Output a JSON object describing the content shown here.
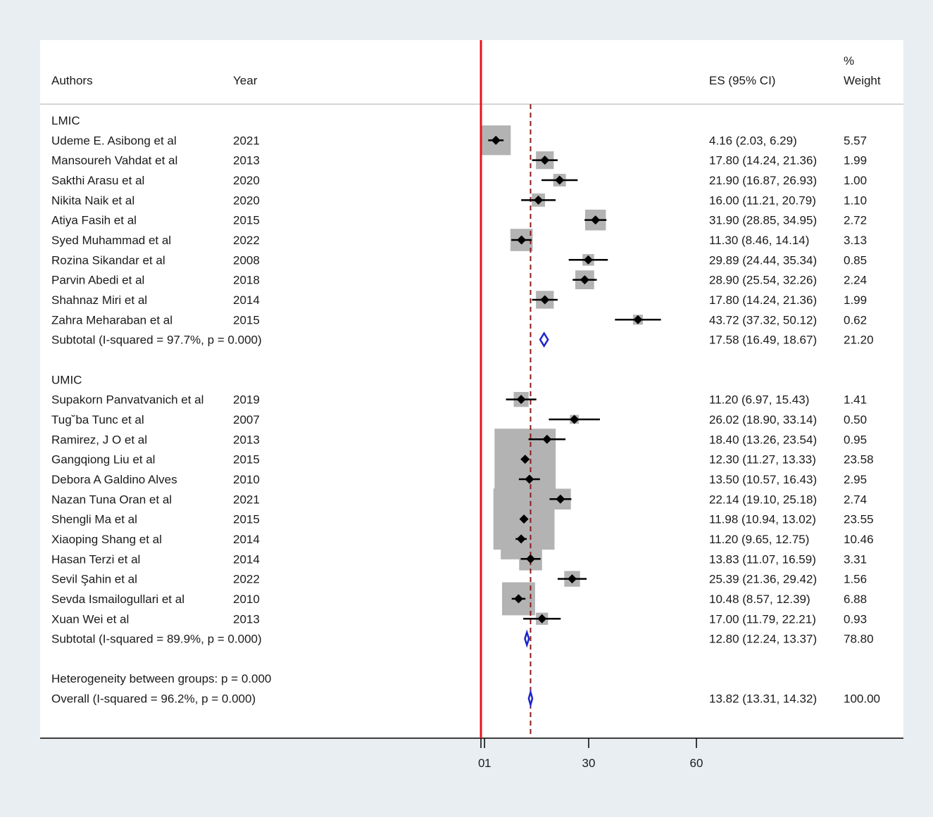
{
  "header": {
    "authors": "Authors",
    "year": "Year",
    "es": "ES (95% CI)",
    "weight_line1": "%",
    "weight_line2": "Weight"
  },
  "chart_data": {
    "type": "forest",
    "xaxis": {
      "ticks": [
        0,
        1,
        30,
        60
      ],
      "tick_labels": [
        "0",
        "1",
        "30",
        "60"
      ],
      "range": [
        0,
        60
      ]
    },
    "null_line": 0,
    "overall_line": 13.82,
    "groups": [
      {
        "label": "LMIC",
        "studies": [
          {
            "author": "Udeme E. Asibong et al",
            "year": "2021",
            "es": 4.16,
            "lo": 2.03,
            "hi": 6.29,
            "ci_text": "4.16 (2.03, 6.29)",
            "weight": 5.57,
            "weight_text": "5.57"
          },
          {
            "author": "Mansoureh Vahdat et al",
            "year": "2013",
            "es": 17.8,
            "lo": 14.24,
            "hi": 21.36,
            "ci_text": "17.80 (14.24, 21.36)",
            "weight": 1.99,
            "weight_text": "1.99"
          },
          {
            "author": "Sakthi Arasu et al",
            "year": "2020",
            "es": 21.9,
            "lo": 16.87,
            "hi": 26.93,
            "ci_text": "21.90 (16.87, 26.93)",
            "weight": 1.0,
            "weight_text": "1.00"
          },
          {
            "author": "Nikita Naik et al",
            "year": "2020",
            "es": 16.0,
            "lo": 11.21,
            "hi": 20.79,
            "ci_text": "16.00 (11.21, 20.79)",
            "weight": 1.1,
            "weight_text": "1.10"
          },
          {
            "author": "Atiya Fasih et al",
            "year": "2015",
            "es": 31.9,
            "lo": 28.85,
            "hi": 34.95,
            "ci_text": "31.90 (28.85, 34.95)",
            "weight": 2.72,
            "weight_text": "2.72"
          },
          {
            "author": "Syed Muhammad et al",
            "year": "2022",
            "es": 11.3,
            "lo": 8.46,
            "hi": 14.14,
            "ci_text": "11.30 (8.46, 14.14)",
            "weight": 3.13,
            "weight_text": "3.13"
          },
          {
            "author": "Rozina Sikandar et al",
            "year": "2008",
            "es": 29.89,
            "lo": 24.44,
            "hi": 35.34,
            "ci_text": "29.89 (24.44, 35.34)",
            "weight": 0.85,
            "weight_text": "0.85"
          },
          {
            "author": "Parvin Abedi et al",
            "year": "2018",
            "es": 28.9,
            "lo": 25.54,
            "hi": 32.26,
            "ci_text": "28.90 (25.54, 32.26)",
            "weight": 2.24,
            "weight_text": "2.24"
          },
          {
            "author": "Shahnaz Miri et al",
            "year": "2014",
            "es": 17.8,
            "lo": 14.24,
            "hi": 21.36,
            "ci_text": "17.80 (14.24, 21.36)",
            "weight": 1.99,
            "weight_text": "1.99"
          },
          {
            "author": "Zahra Meharaban et al",
            "year": "2015",
            "es": 43.72,
            "lo": 37.32,
            "hi": 50.12,
            "ci_text": "43.72 (37.32, 50.12)",
            "weight": 0.62,
            "weight_text": "0.62"
          }
        ],
        "subtotal": {
          "label": "Subtotal  (I-squared = 97.7%, p = 0.000)",
          "es": 17.58,
          "lo": 16.49,
          "hi": 18.67,
          "ci_text": "17.58 (16.49, 18.67)",
          "weight_text": "21.20"
        }
      },
      {
        "label": "UMIC",
        "studies": [
          {
            "author": "Supakorn Panvatvanich et al",
            "year": "2019",
            "es": 11.2,
            "lo": 6.97,
            "hi": 15.43,
            "ci_text": "11.20 (6.97, 15.43)",
            "weight": 1.41,
            "weight_text": "1.41"
          },
          {
            "author": "Tug˘ba Tunc et al",
            "year": "2007",
            "es": 26.02,
            "lo": 18.9,
            "hi": 33.14,
            "ci_text": "26.02 (18.90, 33.14)",
            "weight": 0.5,
            "weight_text": "0.50"
          },
          {
            "author": "Ramirez, J O et al",
            "year": "2013",
            "es": 18.4,
            "lo": 13.26,
            "hi": 23.54,
            "ci_text": "18.40 (13.26, 23.54)",
            "weight": 0.95,
            "weight_text": "0.95"
          },
          {
            "author": "Gangqiong Liu et al",
            "year": "2015",
            "es": 12.3,
            "lo": 11.27,
            "hi": 13.33,
            "ci_text": "12.30 (11.27, 13.33)",
            "weight": 23.58,
            "weight_text": "23.58"
          },
          {
            "author": "Debora A Galdino Alves",
            "year": "2010",
            "es": 13.5,
            "lo": 10.57,
            "hi": 16.43,
            "ci_text": "13.50 (10.57, 16.43)",
            "weight": 2.95,
            "weight_text": "2.95"
          },
          {
            "author": "Nazan Tuna Oran et al",
            "year": "2021",
            "es": 22.14,
            "lo": 19.1,
            "hi": 25.18,
            "ci_text": "22.14 (19.10, 25.18)",
            "weight": 2.74,
            "weight_text": "2.74"
          },
          {
            "author": "Shengli Ma et al",
            "year": "2015",
            "es": 11.98,
            "lo": 10.94,
            "hi": 13.02,
            "ci_text": "11.98 (10.94, 13.02)",
            "weight": 23.55,
            "weight_text": "23.55"
          },
          {
            "author": "Xiaoping Shang et al",
            "year": "2014",
            "es": 11.2,
            "lo": 9.65,
            "hi": 12.75,
            "ci_text": "11.20 (9.65, 12.75)",
            "weight": 10.46,
            "weight_text": "10.46"
          },
          {
            "author": "Hasan Terzi et al",
            "year": "2014",
            "es": 13.83,
            "lo": 11.07,
            "hi": 16.59,
            "ci_text": "13.83 (11.07, 16.59)",
            "weight": 3.31,
            "weight_text": "3.31"
          },
          {
            "author": "Sevil Şahin et al",
            "year": "2022",
            "es": 25.39,
            "lo": 21.36,
            "hi": 29.42,
            "ci_text": "25.39 (21.36, 29.42)",
            "weight": 1.56,
            "weight_text": "1.56"
          },
          {
            "author": "Sevda Ismailogullari et al",
            "year": "2010",
            "es": 10.48,
            "lo": 8.57,
            "hi": 12.39,
            "ci_text": "10.48 (8.57, 12.39)",
            "weight": 6.88,
            "weight_text": "6.88"
          },
          {
            "author": "Xuan Wei et al",
            "year": "2013",
            "es": 17.0,
            "lo": 11.79,
            "hi": 22.21,
            "ci_text": "17.00 (11.79, 22.21)",
            "weight": 0.93,
            "weight_text": "0.93"
          }
        ],
        "subtotal": {
          "label": "Subtotal  (I-squared = 89.9%, p = 0.000)",
          "es": 12.8,
          "lo": 12.24,
          "hi": 13.37,
          "ci_text": "12.80 (12.24, 13.37)",
          "weight_text": "78.80"
        }
      }
    ],
    "heterogeneity": "Heterogeneity between groups: p = 0.000",
    "overall": {
      "label": "Overall  (I-squared = 96.2%, p = 0.000)",
      "es": 13.82,
      "lo": 13.31,
      "hi": 14.32,
      "ci_text": "13.82 (13.31, 14.32)",
      "weight_text": "100.00"
    }
  },
  "colors": {
    "page_bg": "#e9eef2",
    "panel_bg": "#ffffff",
    "null_line": "#e8141b",
    "overall_line": "#8b1a1a",
    "weight_box": "#b3b3b3",
    "point": "#000000",
    "diamond": "#1d24c9"
  }
}
